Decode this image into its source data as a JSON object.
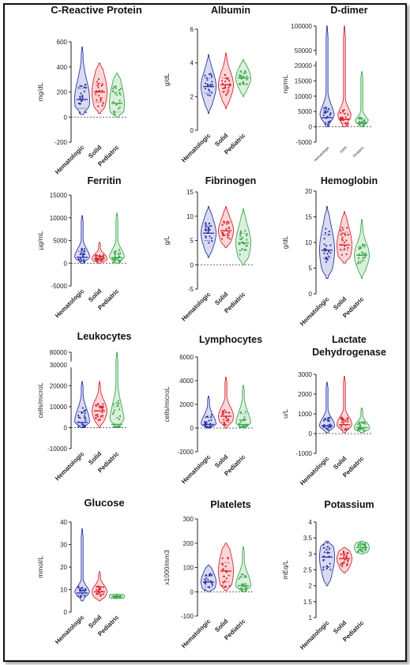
{
  "colors": {
    "Hematologic": "#2b36a8",
    "Solid": "#d9242e",
    "Pediatric": "#3aa84a"
  },
  "chart_data": [
    {
      "type": "violin",
      "title": [
        "C-Reactive Protein"
      ],
      "ylabel": "mg/dL",
      "ylim": [
        -200,
        600
      ],
      "yticks": [
        "-200",
        "0",
        "200",
        "400",
        "600"
      ],
      "categories": [
        "Hematologic",
        "Solid",
        "Pediatric"
      ],
      "series": [
        {
          "name": "Hematologic",
          "min": 20,
          "max": 560,
          "median": 140,
          "q1": 70,
          "q3": 230
        },
        {
          "name": "Solid",
          "min": 30,
          "max": 430,
          "median": 200,
          "q1": 120,
          "q3": 270
        },
        {
          "name": "Pediatric",
          "min": 0,
          "max": 350,
          "median": 110,
          "q1": 40,
          "q3": 200
        }
      ]
    },
    {
      "type": "violin",
      "title": [
        "Albumin"
      ],
      "ylabel": "g/dL",
      "ylim": [
        0,
        6
      ],
      "yticks": [
        "0",
        "2",
        "4",
        "6"
      ],
      "categories": [
        "Hematologic",
        "Solid",
        "Pediatric"
      ],
      "series": [
        {
          "name": "Hematologic",
          "min": 1.0,
          "max": 4.5,
          "median": 2.6,
          "q1": 2.2,
          "q3": 3.1
        },
        {
          "name": "Solid",
          "min": 1.3,
          "max": 4.6,
          "median": 2.7,
          "q1": 2.3,
          "q3": 3.1
        },
        {
          "name": "Pediatric",
          "min": 2.0,
          "max": 4.2,
          "median": 3.1,
          "q1": 2.8,
          "q3": 3.4
        }
      ]
    },
    {
      "type": "violin",
      "title": [
        "D-dimer"
      ],
      "ylabel": "ng/mL",
      "ylim": [
        -5000,
        100000
      ],
      "yticks": [
        "-5000",
        "0",
        "5000",
        "10000",
        "15000",
        "20000",
        "50000",
        "100000"
      ],
      "categories": [
        "Hematologic",
        "Solid",
        "Pediatric"
      ],
      "series": [
        {
          "name": "Hematologic",
          "min": 0,
          "max": 100000,
          "median": 3000,
          "q1": 1500,
          "q3": 5500
        },
        {
          "name": "Solid",
          "min": 0,
          "max": 100000,
          "median": 2500,
          "q1": 1200,
          "q3": 4500
        },
        {
          "name": "Pediatric",
          "min": 0,
          "max": 18000,
          "median": 1200,
          "q1": 500,
          "q3": 2500
        }
      ]
    },
    {
      "type": "violin",
      "title": [
        "Ferritin"
      ],
      "ylabel": "µg/mL",
      "ylim": [
        -5000,
        15000
      ],
      "yticks": [
        "-5000",
        "0",
        "5000",
        "10000",
        "15000"
      ],
      "categories": [
        "Hematologic",
        "Solid",
        "Pediatric"
      ],
      "series": [
        {
          "name": "Hematologic",
          "min": 0,
          "max": 10500,
          "median": 1300,
          "q1": 700,
          "q3": 2600
        },
        {
          "name": "Solid",
          "min": 0,
          "max": 4600,
          "median": 1000,
          "q1": 600,
          "q3": 1500
        },
        {
          "name": "Pediatric",
          "min": 0,
          "max": 11000,
          "median": 1200,
          "q1": 600,
          "q3": 2500
        }
      ]
    },
    {
      "type": "violin",
      "title": [
        "Fibrinogen"
      ],
      "ylabel": "g/L",
      "ylim": [
        -5,
        15
      ],
      "yticks": [
        "-5",
        "0",
        "5",
        "10",
        "15"
      ],
      "categories": [
        "Hematologic",
        "Solid",
        "Pediatric"
      ],
      "series": [
        {
          "name": "Hematologic",
          "min": 1.5,
          "max": 12,
          "median": 6.5,
          "q1": 5.0,
          "q3": 8.0
        },
        {
          "name": "Solid",
          "min": 3.5,
          "max": 12,
          "median": 7.0,
          "q1": 6.0,
          "q3": 8.5
        },
        {
          "name": "Pediatric",
          "min": 0,
          "max": 11.5,
          "median": 4.5,
          "q1": 3.0,
          "q3": 6.5
        }
      ]
    },
    {
      "type": "violin",
      "title": [
        "Hemoglobin"
      ],
      "ylabel": "g/dL",
      "ylim": [
        0,
        20
      ],
      "yticks": [
        "0",
        "5",
        "10",
        "15",
        "20"
      ],
      "categories": [
        "Hematologic",
        "Solid",
        "Pediatric"
      ],
      "series": [
        {
          "name": "Hematologic",
          "min": 3,
          "max": 17,
          "median": 8.5,
          "q1": 7.0,
          "q3": 11.5
        },
        {
          "name": "Solid",
          "min": 6,
          "max": 16,
          "median": 9.5,
          "q1": 8.5,
          "q3": 12.0
        },
        {
          "name": "Pediatric",
          "min": 3,
          "max": 14.5,
          "median": 7.5,
          "q1": 6.5,
          "q3": 9.0
        }
      ]
    },
    {
      "type": "violin",
      "title": [
        "Leukocytes"
      ],
      "ylabel": "cells/microL",
      "ylim": [
        -10000,
        80000
      ],
      "yticks": [
        "-10000",
        "0",
        "10000",
        "20000",
        "30000",
        "80000"
      ],
      "categories": [
        "Hematologic",
        "Solid",
        "Pediatric"
      ],
      "series": [
        {
          "name": "Hematologic",
          "min": 0,
          "max": 22000,
          "median": 2500,
          "q1": 1000,
          "q3": 7500
        },
        {
          "name": "Solid",
          "min": 0,
          "max": 22000,
          "median": 8000,
          "q1": 5000,
          "q3": 10000
        },
        {
          "name": "Pediatric",
          "min": 0,
          "max": 80000,
          "median": 1500,
          "q1": 500,
          "q3": 10000
        }
      ]
    },
    {
      "type": "violin",
      "title": [
        "Lymphocytes"
      ],
      "ylabel": "cells/microL",
      "ylim": [
        -2000,
        6000
      ],
      "yticks": [
        "-2000",
        "0",
        "2000",
        "4000",
        "6000"
      ],
      "categories": [
        "Hematologic",
        "Solid",
        "Pediatric"
      ],
      "series": [
        {
          "name": "Hematologic",
          "min": 0,
          "max": 2700,
          "median": 300,
          "q1": 100,
          "q3": 900
        },
        {
          "name": "Solid",
          "min": 0,
          "max": 4300,
          "median": 1000,
          "q1": 500,
          "q3": 1300
        },
        {
          "name": "Pediatric",
          "min": 0,
          "max": 3600,
          "median": 300,
          "q1": 100,
          "q3": 1200
        }
      ]
    },
    {
      "type": "violin",
      "title": [
        "Lactate",
        "Dehydrogenase"
      ],
      "ylabel": "u/L",
      "ylim": [
        -1000,
        3000
      ],
      "yticks": [
        "-1000",
        "0",
        "1000",
        "2000",
        "3000"
      ],
      "categories": [
        "Hematologic",
        "Solid",
        "Pediatric"
      ],
      "series": [
        {
          "name": "Hematologic",
          "min": 50,
          "max": 2600,
          "median": 400,
          "q1": 300,
          "q3": 700
        },
        {
          "name": "Solid",
          "min": 50,
          "max": 2900,
          "median": 450,
          "q1": 300,
          "q3": 700
        },
        {
          "name": "Pediatric",
          "min": 50,
          "max": 1300,
          "median": 300,
          "q1": 200,
          "q3": 500
        }
      ]
    },
    {
      "type": "violin",
      "title": [
        "Glucose"
      ],
      "ylabel": "mmol/L",
      "ylim": [
        0,
        40
      ],
      "yticks": [
        "0",
        "10",
        "20",
        "30",
        "40"
      ],
      "categories": [
        "Hematologic",
        "Solid",
        "Pediatric"
      ],
      "series": [
        {
          "name": "Hematologic",
          "min": 5,
          "max": 37,
          "median": 8.5,
          "q1": 7.5,
          "q3": 10.5
        },
        {
          "name": "Solid",
          "min": 5,
          "max": 18,
          "median": 9,
          "q1": 8,
          "q3": 11
        },
        {
          "name": "Pediatric",
          "min": 6,
          "max": 8,
          "median": 7,
          "q1": 6.6,
          "q3": 7.3
        }
      ]
    },
    {
      "type": "violin",
      "title": [
        "Platelets"
      ],
      "ylabel": "x1000/mm3",
      "ylim": [
        -100,
        300
      ],
      "yticks": [
        "-100",
        "0",
        "100",
        "200",
        "300"
      ],
      "categories": [
        "Hematologic",
        "Solid",
        "Pediatric"
      ],
      "series": [
        {
          "name": "Hematologic",
          "min": 0,
          "max": 110,
          "median": 40,
          "q1": 20,
          "q3": 65
        },
        {
          "name": "Solid",
          "min": 5,
          "max": 200,
          "median": 85,
          "q1": 40,
          "q3": 120
        },
        {
          "name": "Pediatric",
          "min": 0,
          "max": 185,
          "median": 25,
          "q1": 10,
          "q3": 60
        }
      ]
    },
    {
      "type": "violin",
      "title": [
        "Potassium"
      ],
      "ylabel": "mEq/L",
      "ylim": [
        1,
        4
      ],
      "yticks": [
        "1",
        "1.5",
        "2",
        "2.5",
        "3",
        "3.5",
        "4"
      ],
      "categories": [
        "Hematologic",
        "Solid",
        "Pediatric"
      ],
      "series": [
        {
          "name": "Hematologic",
          "min": 2.0,
          "max": 3.4,
          "median": 2.9,
          "q1": 2.6,
          "q3": 3.2
        },
        {
          "name": "Solid",
          "min": 2.4,
          "max": 3.2,
          "median": 2.85,
          "q1": 2.7,
          "q3": 3.0
        },
        {
          "name": "Pediatric",
          "min": 3.0,
          "max": 3.4,
          "median": 3.2,
          "q1": 3.1,
          "q3": 3.3
        }
      ]
    }
  ]
}
